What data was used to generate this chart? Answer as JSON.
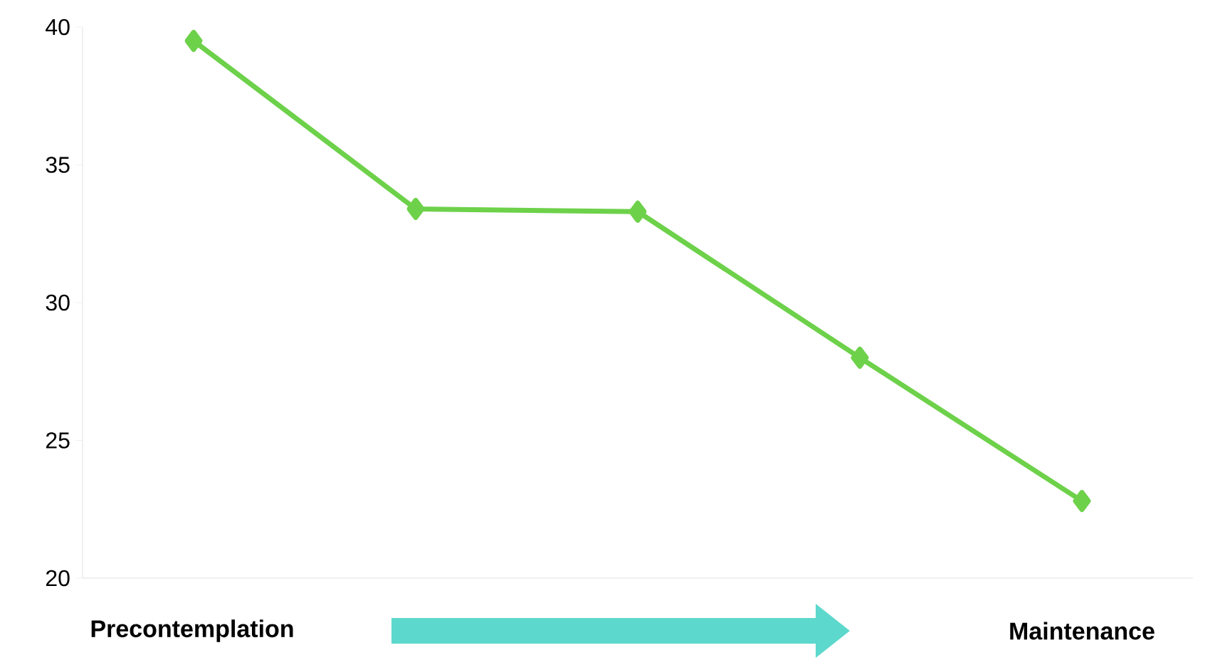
{
  "chart_data": {
    "type": "line",
    "categories": [
      null,
      null,
      null,
      null,
      null
    ],
    "series": [
      {
        "color": "#6dd14a",
        "values": [
          39.5,
          33.4,
          33.3,
          28.0,
          22.8
        ]
      }
    ],
    "ylim": [
      20,
      40
    ],
    "yticks": [
      20,
      25,
      30,
      35,
      40
    ],
    "marker": "diamond",
    "line_style": "solid",
    "annotations": [
      "Precontemplation",
      "Maintenance"
    ]
  }
}
